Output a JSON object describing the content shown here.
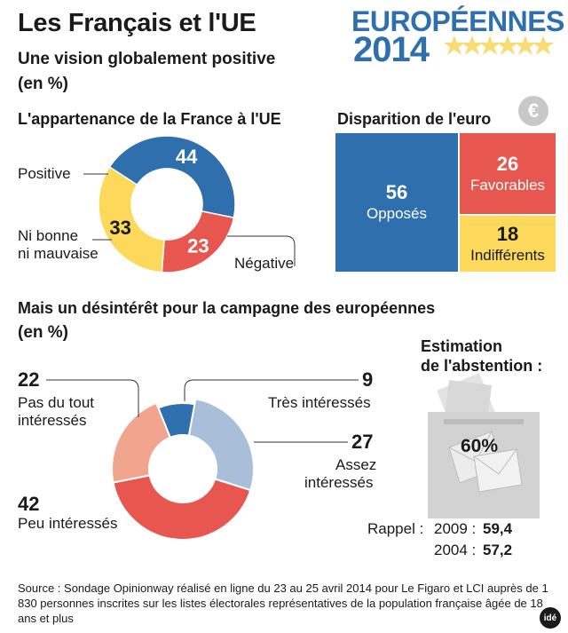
{
  "header": {
    "title": "Les Français et l'UE",
    "subtitle": "Une vision globalement positive",
    "unit": "(en %)",
    "brand_line1": "EUROPÉENNES",
    "brand_line2": "2014"
  },
  "colors": {
    "blue": "#2f6fad",
    "red": "#e8574f",
    "yellow": "#fcd95a",
    "light_blue": "#a9bfd9",
    "salmon": "#f2a58e",
    "gray": "#c8c8c8",
    "text": "#1a1a1a"
  },
  "chart_data": [
    {
      "type": "pie",
      "title": "L'appartenance de la France à l'UE",
      "labels": [
        "Positive",
        "Négative",
        "Ni bonne ni mauvaise"
      ],
      "values": [
        44,
        23,
        33
      ],
      "value_labels": [
        "44",
        "23",
        "33"
      ],
      "label_lines": [
        [
          "Positive"
        ],
        [
          "Négative"
        ],
        [
          "Ni bonne",
          "ni mauvaise"
        ]
      ]
    },
    {
      "type": "table",
      "title": "Disparition de l'euro",
      "icon": "€",
      "labels": [
        "Opposés",
        "Favorables",
        "Indifférents"
      ],
      "values": [
        56,
        26,
        18
      ],
      "value_labels": [
        "56",
        "26",
        "18"
      ]
    },
    {
      "type": "pie",
      "title": "Mais un désintérêt pour la campagne des européennes",
      "unit": "(en %)",
      "labels": [
        "Très intéressés",
        "Assez intéressés",
        "Peu intéressés",
        "Pas du tout intéressés"
      ],
      "values": [
        9,
        27,
        42,
        22
      ],
      "value_labels": [
        "9",
        "27",
        "42",
        "22"
      ],
      "label_lines": [
        [
          "Très intéressés"
        ],
        [
          "Assez",
          "intéressés"
        ],
        [
          "Peu intéressés"
        ],
        [
          "Pas du tout",
          "intéressés"
        ]
      ]
    }
  ],
  "abstention": {
    "title_line1": "Estimation",
    "title_line2": "de l'abstention :",
    "value": "60%",
    "rappel_label": "Rappel :",
    "years": [
      "2009 :",
      "2004 :"
    ],
    "values": [
      "59,4",
      "57,2"
    ]
  },
  "source": {
    "text": "Source : Sondage Opinionway réalisé en ligne du 23 au 25 avril 2014 pour Le Figaro et LCI auprès de 1 830 personnes inscrites sur les listes électorales représentatives de la population française âgée de 18 ans et plus",
    "logo": "idé"
  }
}
